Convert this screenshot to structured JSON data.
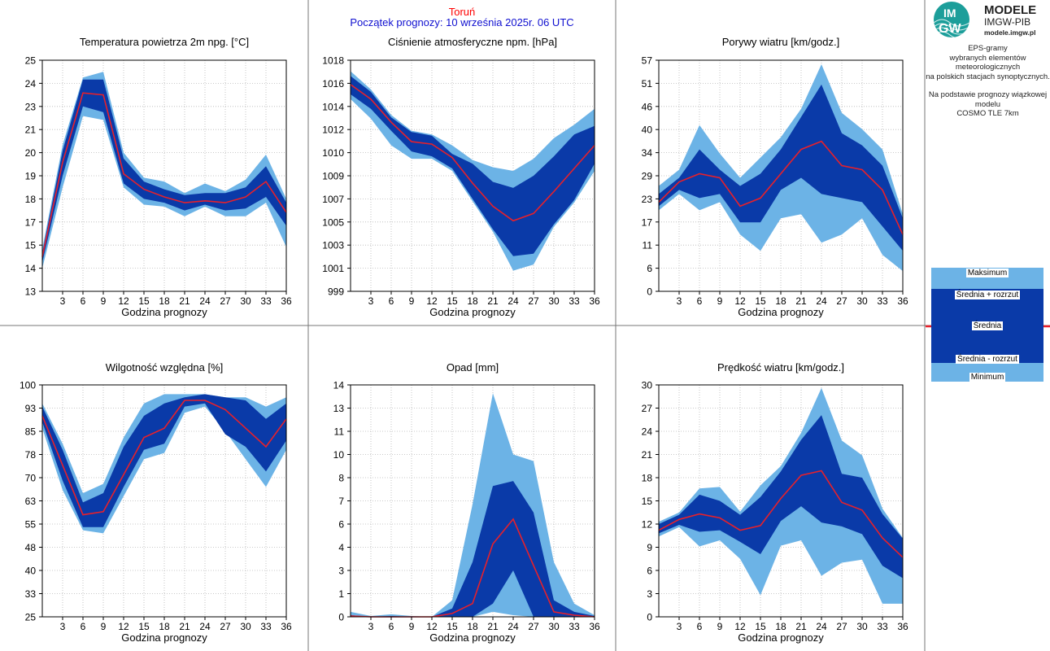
{
  "header": {
    "station": "Toruń",
    "forecast_start": "Początek prognozy: 10 września 2025r. 06 UTC"
  },
  "logo": {
    "badge_top": "IM",
    "badge_bottom": "GW",
    "title": "MODELE",
    "subtitle": "IMGW-PIB",
    "url": "modele.imgw.pl"
  },
  "side_text": {
    "lines1": [
      "EPS-gramy",
      "wybranych elementów meteorologicznych",
      "na polskich stacjach  synoptycznych."
    ],
    "lines2": [
      "Na podstawie prognozy wiązkowej modelu",
      "COSMO TLE 7km"
    ]
  },
  "legend": {
    "max": "Maksimum",
    "mean_plus": "Średnia + rozrzut",
    "mean": "Średnia",
    "mean_minus": "Średnia - rozrzut",
    "min": "Minimum"
  },
  "colors": {
    "light_band": "#6cb3e6",
    "dark_band": "#0a3aa8",
    "mean_line": "#e8202a",
    "grid": "#b8b8b8"
  },
  "chart_data": [
    {
      "type": "area",
      "title": "Temperatura powietrza 2m npg. [°C]",
      "xlabel": "Godzina prognozy",
      "xticks": [
        3,
        6,
        9,
        12,
        15,
        18,
        21,
        24,
        27,
        30,
        33,
        36
      ],
      "yticks": [
        "13",
        "14",
        "15",
        "17",
        "18",
        "19",
        "20",
        "21",
        "23",
        "24",
        "25"
      ],
      "ylim": [
        13,
        25
      ],
      "x": [
        0,
        3,
        6,
        9,
        12,
        15,
        18,
        21,
        24,
        27,
        30,
        33,
        36
      ],
      "max": [
        15.2,
        20.6,
        24.1,
        24.4,
        20.2,
        18.9,
        18.7,
        18.1,
        18.6,
        18.2,
        18.8,
        20.1,
        17.8
      ],
      "upper": [
        15.0,
        20.3,
        24.0,
        24.0,
        19.9,
        18.7,
        18.3,
        18.0,
        18.1,
        18.1,
        18.4,
        19.5,
        17.6
      ],
      "mean": [
        14.8,
        19.7,
        23.3,
        23.2,
        19.1,
        18.3,
        17.9,
        17.6,
        17.7,
        17.6,
        17.9,
        18.7,
        17.1
      ],
      "lower": [
        14.5,
        19.0,
        22.6,
        22.3,
        18.6,
        17.8,
        17.6,
        17.2,
        17.5,
        17.2,
        17.3,
        17.9,
        16.4
      ],
      "min": [
        14.2,
        18.4,
        22.1,
        21.9,
        18.4,
        17.5,
        17.4,
        16.9,
        17.4,
        16.9,
        16.9,
        17.6,
        15.3
      ]
    },
    {
      "type": "area",
      "title": "Ciśnienie atmosferyczne npm. [hPa]",
      "xlabel": "Godzina prognozy",
      "xticks": [
        3,
        6,
        9,
        12,
        15,
        18,
        21,
        24,
        27,
        30,
        33,
        36
      ],
      "yticks": [
        "999",
        "1001",
        "1003",
        "1005",
        "1007",
        "1009",
        "1010",
        "1012",
        "1014",
        "1016",
        "1018"
      ],
      "ylim": [
        999,
        1018
      ],
      "x": [
        0,
        3,
        6,
        9,
        12,
        15,
        18,
        21,
        24,
        27,
        30,
        33,
        36
      ],
      "max": [
        1017.1,
        1015.6,
        1013.5,
        1012.2,
        1011.9,
        1011.0,
        1009.8,
        1009.2,
        1008.9,
        1009.9,
        1011.6,
        1012.7,
        1014.0
      ],
      "upper": [
        1016.7,
        1015.4,
        1013.3,
        1012.1,
        1011.8,
        1010.3,
        1009.5,
        1008.0,
        1007.5,
        1008.5,
        1010.1,
        1011.9,
        1012.6
      ],
      "mean": [
        1016.0,
        1014.8,
        1012.9,
        1011.3,
        1011.1,
        1010.0,
        1007.9,
        1006.0,
        1004.8,
        1005.4,
        1007.2,
        1009.1,
        1011.0
      ],
      "lower": [
        1015.2,
        1014.0,
        1012.2,
        1010.5,
        1010.1,
        1009.1,
        1006.6,
        1004.1,
        1001.9,
        1002.1,
        1004.5,
        1006.5,
        1009.5
      ],
      "min": [
        1014.8,
        1013.2,
        1011.0,
        1009.9,
        1009.9,
        1008.9,
        1006.4,
        1003.9,
        1000.7,
        1001.2,
        1004.3,
        1006.3,
        1008.9
      ]
    },
    {
      "type": "area",
      "title": "Porywy wiatru [km/godz.]",
      "xlabel": "Godzina prognozy",
      "xticks": [
        3,
        6,
        9,
        12,
        15,
        18,
        21,
        24,
        27,
        30,
        33,
        36
      ],
      "yticks": [
        "0",
        "6",
        "11",
        "17",
        "23",
        "29",
        "34",
        "40",
        "46",
        "51",
        "57"
      ],
      "ylim": [
        0,
        57
      ],
      "x": [
        0,
        3,
        6,
        9,
        12,
        15,
        18,
        21,
        24,
        27,
        30,
        33,
        36
      ],
      "max": [
        26,
        30,
        41,
        34,
        28,
        33,
        38,
        45,
        56,
        44,
        40,
        35,
        19
      ],
      "upper": [
        24,
        28,
        35,
        30,
        26,
        29,
        35,
        43,
        51,
        39,
        36,
        31,
        18
      ],
      "mean": [
        22,
        27,
        29,
        28,
        21,
        23,
        29,
        35,
        37,
        31,
        30,
        25,
        14
      ],
      "lower": [
        21,
        25,
        23,
        24,
        17,
        17,
        25,
        28,
        24,
        23,
        22,
        16,
        10
      ],
      "min": [
        20,
        24,
        20,
        22,
        14,
        10,
        18,
        19,
        12,
        14,
        18,
        9,
        5
      ]
    },
    {
      "type": "area",
      "title": "Wilgotność względna [%]",
      "xlabel": "Godzina prognozy",
      "xticks": [
        3,
        6,
        9,
        12,
        15,
        18,
        21,
        24,
        27,
        30,
        33,
        36
      ],
      "yticks": [
        "25",
        "33",
        "40",
        "48",
        "55",
        "63",
        "70",
        "78",
        "85",
        "93",
        "100"
      ],
      "ylim": [
        25,
        100
      ],
      "x": [
        0,
        3,
        6,
        9,
        12,
        15,
        18,
        21,
        24,
        27,
        30,
        33,
        36
      ],
      "max": [
        94,
        81,
        65,
        68,
        83,
        94,
        97,
        97,
        97,
        96,
        96,
        93,
        96
      ],
      "upper": [
        93,
        79,
        62,
        65,
        80,
        90,
        94,
        96,
        97,
        96,
        95,
        89,
        94
      ],
      "mean": [
        90,
        74,
        58,
        59,
        71,
        83,
        86,
        95,
        95,
        92,
        86,
        80,
        89
      ],
      "lower": [
        88,
        69,
        54,
        54,
        67,
        79,
        81,
        93,
        94,
        84,
        80,
        72,
        82
      ],
      "min": [
        86,
        66,
        53,
        52,
        64,
        76,
        78,
        91,
        93,
        85,
        76,
        67,
        79
      ]
    },
    {
      "type": "area",
      "title": "Opad [mm]",
      "xlabel": "Godzina prognozy",
      "xticks": [
        3,
        6,
        9,
        12,
        15,
        18,
        21,
        24,
        27,
        30,
        33,
        36
      ],
      "yticks": [
        "0",
        "1",
        "3",
        "4",
        "6",
        "7",
        "8",
        "10",
        "11",
        "13",
        "14"
      ],
      "ylim": [
        0,
        14
      ],
      "x": [
        0,
        3,
        6,
        9,
        12,
        15,
        18,
        21,
        24,
        27,
        30,
        33,
        36
      ],
      "max": [
        0.3,
        0.05,
        0.15,
        0.05,
        0.0,
        1.0,
        6.8,
        13.5,
        9.8,
        9.4,
        3.3,
        0.8,
        0.1
      ],
      "upper": [
        0.1,
        0.0,
        0.05,
        0.0,
        0.0,
        0.5,
        3.3,
        7.9,
        8.2,
        6.3,
        1.0,
        0.3,
        0.05
      ],
      "mean": [
        0.05,
        0.0,
        0.0,
        0.0,
        0.0,
        0.2,
        0.8,
        4.4,
        5.9,
        3.1,
        0.3,
        0.1,
        0.0
      ],
      "lower": [
        0.0,
        0.0,
        0.0,
        0.0,
        0.0,
        0.0,
        0.0,
        0.8,
        2.8,
        0.0,
        0.0,
        0.0,
        0.0
      ],
      "min": [
        0.0,
        0.0,
        0.0,
        0.0,
        0.0,
        0.0,
        0.0,
        0.3,
        0.1,
        0.0,
        0.0,
        0.0,
        0.0
      ]
    },
    {
      "type": "area",
      "title": "Prędkość wiatru [km/godz.]",
      "xlabel": "Godzina prognozy",
      "xticks": [
        3,
        6,
        9,
        12,
        15,
        18,
        21,
        24,
        27,
        30,
        33,
        36
      ],
      "yticks": [
        "0",
        "3",
        "6",
        "9",
        "12",
        "15",
        "18",
        "21",
        "24",
        "27",
        "30"
      ],
      "ylim": [
        0,
        30
      ],
      "x": [
        0,
        3,
        6,
        9,
        12,
        15,
        18,
        21,
        24,
        27,
        30,
        33,
        36
      ],
      "max": [
        12.3,
        13.5,
        16.6,
        16.8,
        13.6,
        17.0,
        19.5,
        23.8,
        29.6,
        22.8,
        20.9,
        14.0,
        10.2
      ],
      "upper": [
        12.0,
        13.2,
        15.8,
        15.0,
        13.2,
        15.5,
        18.8,
        22.9,
        26.1,
        18.5,
        18.0,
        13.3,
        10.1
      ],
      "mean": [
        11.2,
        12.6,
        13.3,
        12.8,
        11.2,
        11.8,
        15.3,
        18.3,
        18.9,
        14.8,
        13.8,
        10.2,
        7.7
      ],
      "lower": [
        10.8,
        11.9,
        11.0,
        11.2,
        9.7,
        8.1,
        12.4,
        14.3,
        12.2,
        11.7,
        10.7,
        6.6,
        5.0
      ],
      "min": [
        10.4,
        11.6,
        9.1,
        9.9,
        7.5,
        2.8,
        9.2,
        9.9,
        5.3,
        7.0,
        7.4,
        1.7,
        1.7
      ]
    }
  ]
}
